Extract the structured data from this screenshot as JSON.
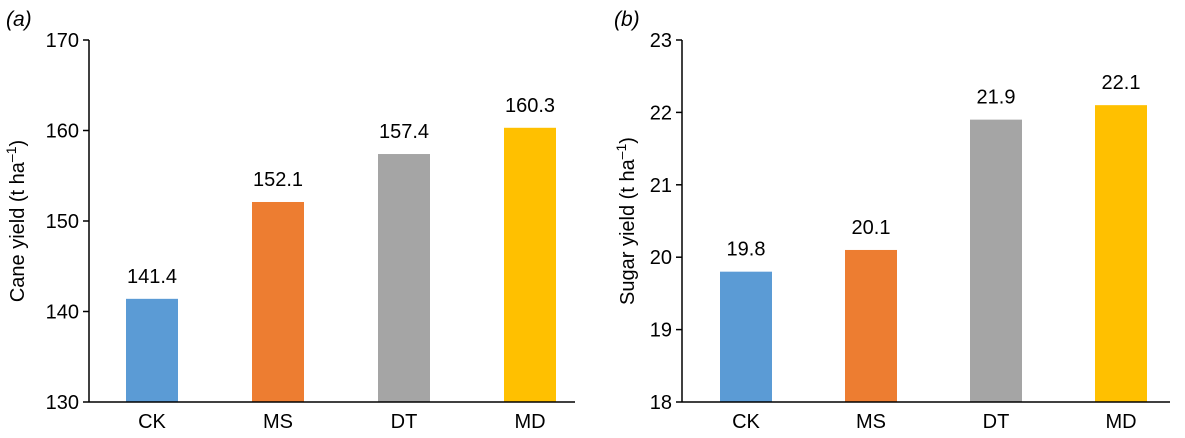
{
  "chart_data": [
    {
      "type": "bar",
      "panel_label": "(a)",
      "ylabel": "Cane yield (t ha–1)",
      "ylabel_text": "Cane yield (t ha",
      "ylabel_superscript": "–1",
      "ylabel_close": ")",
      "xlabel": "",
      "ylim": [
        130,
        170
      ],
      "yticks": [
        130,
        140,
        150,
        160,
        170
      ],
      "categories": [
        "CK",
        "MS",
        "DT",
        "MD"
      ],
      "values": [
        141.4,
        152.1,
        157.4,
        160.3
      ],
      "value_labels": [
        "141.4",
        "152.1",
        "157.4",
        "160.3"
      ],
      "colors": [
        "#5B9BD5",
        "#ED7D31",
        "#A5A5A5",
        "#FFC000"
      ],
      "grid": false,
      "legend": "none"
    },
    {
      "type": "bar",
      "panel_label": "(b)",
      "ylabel": "Sugar yield (t ha–1)",
      "ylabel_text": "Sugar yield (t ha",
      "ylabel_superscript": "–1",
      "ylabel_close": ")",
      "xlabel": "",
      "ylim": [
        18,
        23
      ],
      "yticks": [
        18,
        19,
        20,
        21,
        22,
        23
      ],
      "categories": [
        "CK",
        "MS",
        "DT",
        "MD"
      ],
      "values": [
        19.8,
        20.1,
        21.9,
        22.1
      ],
      "value_labels": [
        "19.8",
        "20.1",
        "21.9",
        "22.1"
      ],
      "colors": [
        "#5B9BD5",
        "#ED7D31",
        "#A5A5A5",
        "#FFC000"
      ],
      "grid": false,
      "legend": "none"
    }
  ]
}
